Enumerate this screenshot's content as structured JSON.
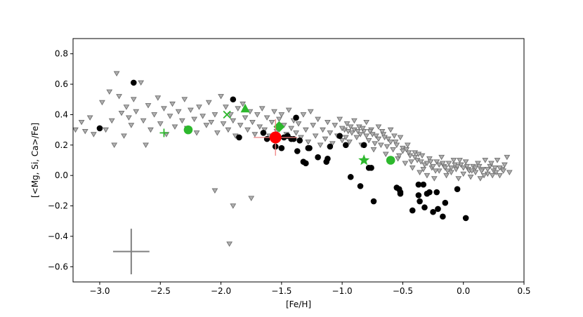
{
  "chart_data": {
    "type": "scatter",
    "title": "",
    "xlabel": "[Fe/H]",
    "ylabel": "[<Mg, Si, Ca>/Fe]",
    "xlim": [
      -3.22,
      0.5
    ],
    "ylim": [
      -0.7,
      0.9
    ],
    "xticks": [
      -3.0,
      -2.5,
      -2.0,
      -1.5,
      -1.0,
      -0.5,
      0.0,
      0.5
    ],
    "xtick_labels": [
      "−3.0",
      "−2.5",
      "−2.0",
      "−1.5",
      "−1.0",
      "−0.5",
      "0.0",
      "0.5"
    ],
    "yticks": [
      -0.6,
      -0.4,
      -0.2,
      0.0,
      0.2,
      0.4,
      0.6,
      0.8
    ],
    "ytick_labels": [
      "−0.6",
      "−0.4",
      "−0.2",
      "0.0",
      "0.2",
      "0.4",
      "0.6",
      "0.8"
    ],
    "grid": false,
    "legend": "none",
    "colors": {
      "background_stars": "#8c8c8c",
      "black_points": "#000000",
      "green_markers": "#2db82d",
      "red_marker": "#ff0000",
      "red_errorbar": "#f08080",
      "error_cross": "#808080"
    },
    "error_bar_example": {
      "x": -2.74,
      "y": -0.5,
      "xerr": 0.15,
      "yerr": 0.15
    },
    "series": [
      {
        "marker": "triangle-down",
        "color": "#8c8c8c",
        "points": [
          [
            -3.2,
            0.3
          ],
          [
            -3.15,
            0.35
          ],
          [
            -3.12,
            0.29
          ],
          [
            -3.08,
            0.38
          ],
          [
            -3.05,
            0.27
          ],
          [
            -2.98,
            0.48
          ],
          [
            -2.95,
            0.3
          ],
          [
            -2.92,
            0.55
          ],
          [
            -2.9,
            0.36
          ],
          [
            -2.88,
            0.2
          ],
          [
            -2.86,
            0.67
          ],
          [
            -2.84,
            0.52
          ],
          [
            -2.82,
            0.41
          ],
          [
            -2.8,
            0.26
          ],
          [
            -2.78,
            0.45
          ],
          [
            -2.76,
            0.38
          ],
          [
            -2.74,
            0.33
          ],
          [
            -2.72,
            0.5
          ],
          [
            -2.7,
            0.42
          ],
          [
            -2.66,
            0.61
          ],
          [
            -2.64,
            0.36
          ],
          [
            -2.62,
            0.2
          ],
          [
            -2.6,
            0.46
          ],
          [
            -2.58,
            0.3
          ],
          [
            -2.55,
            0.4
          ],
          [
            -2.52,
            0.51
          ],
          [
            -2.5,
            0.34
          ],
          [
            -2.47,
            0.44
          ],
          [
            -2.45,
            0.27
          ],
          [
            -2.42,
            0.39
          ],
          [
            -2.4,
            0.47
          ],
          [
            -2.38,
            0.32
          ],
          [
            -2.35,
            0.42
          ],
          [
            -2.32,
            0.36
          ],
          [
            -2.3,
            0.5
          ],
          [
            -2.28,
            0.31
          ],
          [
            -2.25,
            0.43
          ],
          [
            -2.22,
            0.37
          ],
          [
            -2.2,
            0.28
          ],
          [
            -2.18,
            0.45
          ],
          [
            -2.15,
            0.39
          ],
          [
            -2.12,
            0.33
          ],
          [
            -2.1,
            0.48
          ],
          [
            -2.08,
            0.35
          ],
          [
            -2.05,
            0.4
          ],
          [
            -2.03,
            0.28
          ],
          [
            -2.0,
            0.52
          ],
          [
            -1.98,
            0.34
          ],
          [
            -1.96,
            0.45
          ],
          [
            -1.94,
            0.3
          ],
          [
            -1.92,
            0.4
          ],
          [
            -1.9,
            0.36
          ],
          [
            -1.88,
            0.26
          ],
          [
            -1.86,
            0.44
          ],
          [
            -1.84,
            0.33
          ],
          [
            -1.82,
            0.47
          ],
          [
            -1.8,
            0.38
          ],
          [
            -1.78,
            0.3
          ],
          [
            -1.76,
            0.42
          ],
          [
            -1.74,
            0.35
          ],
          [
            -1.72,
            0.27
          ],
          [
            -1.7,
            0.4
          ],
          [
            -1.68,
            0.32
          ],
          [
            -1.66,
            0.44
          ],
          [
            -1.64,
            0.3
          ],
          [
            -1.62,
            0.38
          ],
          [
            -1.6,
            0.26
          ],
          [
            -1.58,
            0.35
          ],
          [
            -1.56,
            0.42
          ],
          [
            -1.54,
            0.29
          ],
          [
            -1.52,
            0.37
          ],
          [
            -1.5,
            0.4
          ],
          [
            -1.48,
            0.33
          ],
          [
            -1.46,
            0.27
          ],
          [
            -1.44,
            0.43
          ],
          [
            -1.42,
            0.31
          ],
          [
            -1.4,
            0.36
          ],
          [
            -1.38,
            0.28
          ],
          [
            -1.36,
            0.34
          ],
          [
            -1.34,
            0.25
          ],
          [
            -1.32,
            0.4
          ],
          [
            -1.3,
            0.3
          ],
          [
            -1.28,
            0.22
          ],
          [
            -1.26,
            0.42
          ],
          [
            -1.24,
            0.33
          ],
          [
            -1.22,
            0.26
          ],
          [
            -1.2,
            0.37
          ],
          [
            -1.18,
            0.2
          ],
          [
            -1.16,
            0.3
          ],
          [
            -1.14,
            0.24
          ],
          [
            -1.12,
            0.35
          ],
          [
            -1.1,
            0.28
          ],
          [
            -1.08,
            0.21
          ],
          [
            -1.06,
            0.33
          ],
          [
            -1.04,
            0.26
          ],
          [
            -1.02,
            0.37
          ],
          [
            -1.0,
            0.23
          ],
          [
            -0.98,
            0.3
          ],
          [
            -0.96,
            0.34
          ],
          [
            -0.94,
            0.22
          ],
          [
            -0.92,
            0.28
          ],
          [
            -0.9,
            0.36
          ],
          [
            -0.88,
            0.25
          ],
          [
            -0.86,
            0.32
          ],
          [
            -0.84,
            0.2
          ],
          [
            -0.82,
            0.29
          ],
          [
            -0.8,
            0.35
          ],
          [
            -0.78,
            0.23
          ],
          [
            -0.76,
            0.3
          ],
          [
            -0.74,
            0.17
          ],
          [
            -0.72,
            0.26
          ],
          [
            -0.7,
            0.32
          ],
          [
            -0.68,
            0.2
          ],
          [
            -0.66,
            0.27
          ],
          [
            -0.64,
            0.14
          ],
          [
            -0.62,
            0.24
          ],
          [
            -0.6,
            0.3
          ],
          [
            -0.58,
            0.17
          ],
          [
            -0.56,
            0.22
          ],
          [
            -0.54,
            0.11
          ],
          [
            -0.52,
            0.25
          ],
          [
            -0.5,
            0.18
          ],
          [
            -0.48,
            0.08
          ],
          [
            -0.46,
            0.2
          ],
          [
            -0.44,
            0.13
          ],
          [
            -0.42,
            0.05
          ],
          [
            -0.4,
            0.15
          ],
          [
            -0.38,
            0.1
          ],
          [
            -0.36,
            0.02
          ],
          [
            -0.34,
            0.13
          ],
          [
            -0.32,
            0.07
          ],
          [
            -0.3,
            0.0
          ],
          [
            -0.28,
            0.11
          ],
          [
            -0.26,
            0.05
          ],
          [
            -0.24,
            -0.02
          ],
          [
            -0.22,
            0.09
          ],
          [
            -0.2,
            0.03
          ],
          [
            -0.18,
            0.12
          ],
          [
            -0.16,
            0.06
          ],
          [
            -0.14,
            0.0
          ],
          [
            -0.12,
            0.08
          ],
          [
            -0.1,
            0.02
          ],
          [
            -0.08,
            0.1
          ],
          [
            -0.06,
            0.04
          ],
          [
            -0.04,
            -0.02
          ],
          [
            -0.02,
            0.07
          ],
          [
            0.0,
            0.01
          ],
          [
            0.02,
            0.09
          ],
          [
            0.04,
            0.04
          ],
          [
            0.06,
            -0.01
          ],
          [
            0.08,
            0.06
          ],
          [
            0.1,
            0.02
          ],
          [
            0.12,
            0.08
          ],
          [
            0.14,
            -0.02
          ],
          [
            0.16,
            0.04
          ],
          [
            0.18,
            0.1
          ],
          [
            0.2,
            0.01
          ],
          [
            0.22,
            0.06
          ],
          [
            0.24,
            0.0
          ],
          [
            0.26,
            0.05
          ],
          [
            0.28,
            0.1
          ],
          [
            0.3,
            0.0
          ],
          [
            0.32,
            0.04
          ],
          [
            0.34,
            0.07
          ],
          [
            0.36,
            0.12
          ],
          [
            0.38,
            0.02
          ],
          [
            -1.0,
            0.31
          ],
          [
            -0.95,
            0.29
          ],
          [
            -0.9,
            0.3
          ],
          [
            -0.85,
            0.27
          ],
          [
            -0.8,
            0.26
          ],
          [
            -0.75,
            0.27
          ],
          [
            -0.7,
            0.24
          ],
          [
            -0.65,
            0.25
          ],
          [
            -0.6,
            0.22
          ],
          [
            -0.55,
            0.2
          ],
          [
            -0.5,
            0.16
          ],
          [
            -0.45,
            0.15
          ],
          [
            -0.4,
            0.12
          ],
          [
            -0.35,
            0.09
          ],
          [
            -0.3,
            0.08
          ],
          [
            -0.25,
            0.06
          ],
          [
            -0.2,
            0.07
          ],
          [
            -0.15,
            0.05
          ],
          [
            -0.1,
            0.05
          ],
          [
            -0.05,
            0.06
          ],
          [
            0.0,
            0.05
          ],
          [
            0.05,
            0.03
          ],
          [
            0.1,
            0.05
          ],
          [
            0.15,
            0.03
          ],
          [
            0.2,
            0.04
          ],
          [
            0.25,
            0.03
          ],
          [
            0.3,
            0.05
          ],
          [
            -0.97,
            0.25
          ],
          [
            -0.93,
            0.32
          ],
          [
            -0.87,
            0.29
          ],
          [
            -0.83,
            0.31
          ],
          [
            -0.77,
            0.29
          ],
          [
            -0.73,
            0.21
          ],
          [
            -0.67,
            0.29
          ],
          [
            -0.63,
            0.19
          ],
          [
            -0.57,
            0.26
          ],
          [
            -0.53,
            0.13
          ],
          [
            -0.47,
            0.17
          ],
          [
            -0.43,
            0.09
          ],
          [
            -0.37,
            0.14
          ],
          [
            -0.33,
            0.04
          ],
          [
            -0.27,
            0.09
          ],
          [
            -0.23,
            0.03
          ],
          [
            -0.17,
            0.08
          ],
          [
            -0.13,
            0.03
          ],
          [
            -0.07,
            0.07
          ],
          [
            -0.03,
            0.1
          ],
          [
            0.03,
            0.06
          ],
          [
            0.07,
            0.03
          ],
          [
            0.13,
            0.06
          ],
          [
            0.17,
            0.0
          ],
          [
            0.23,
            0.08
          ],
          [
            0.27,
            0.02
          ],
          [
            0.33,
            0.03
          ],
          [
            -1.9,
            -0.2
          ],
          [
            -2.05,
            -0.1
          ],
          [
            -1.75,
            -0.15
          ],
          [
            -1.93,
            -0.45
          ]
        ]
      },
      {
        "marker": "circle",
        "color": "#000000",
        "points": [
          [
            -3.0,
            0.31
          ],
          [
            -2.72,
            0.61
          ],
          [
            -1.9,
            0.5
          ],
          [
            -1.85,
            0.25
          ],
          [
            -1.65,
            0.28
          ],
          [
            -1.62,
            0.24
          ],
          [
            -1.55,
            0.19
          ],
          [
            -1.5,
            0.18
          ],
          [
            -1.48,
            0.25
          ],
          [
            -1.45,
            0.26
          ],
          [
            -1.42,
            0.24
          ],
          [
            -1.4,
            0.24
          ],
          [
            -1.38,
            0.38
          ],
          [
            -1.35,
            0.23
          ],
          [
            -1.37,
            0.16
          ],
          [
            -1.32,
            0.09
          ],
          [
            -1.3,
            0.08
          ],
          [
            -1.28,
            0.18
          ],
          [
            -1.27,
            0.18
          ],
          [
            -1.2,
            0.12
          ],
          [
            -1.13,
            0.09
          ],
          [
            -1.12,
            0.11
          ],
          [
            -1.1,
            0.19
          ],
          [
            -1.02,
            0.26
          ],
          [
            -0.97,
            0.2
          ],
          [
            -0.93,
            -0.01
          ],
          [
            -0.85,
            -0.07
          ],
          [
            -0.82,
            0.2
          ],
          [
            -0.78,
            0.05
          ],
          [
            -0.76,
            0.05
          ],
          [
            -0.74,
            -0.17
          ],
          [
            -0.55,
            -0.08
          ],
          [
            -0.53,
            -0.09
          ],
          [
            -0.52,
            -0.11
          ],
          [
            -0.52,
            -0.12
          ],
          [
            -0.42,
            -0.23
          ],
          [
            -0.37,
            -0.06
          ],
          [
            -0.37,
            -0.13
          ],
          [
            -0.36,
            -0.17
          ],
          [
            -0.33,
            -0.06
          ],
          [
            -0.32,
            -0.21
          ],
          [
            -0.3,
            -0.12
          ],
          [
            -0.28,
            -0.11
          ],
          [
            -0.25,
            -0.24
          ],
          [
            -0.22,
            -0.11
          ],
          [
            -0.21,
            -0.22
          ],
          [
            -0.17,
            -0.27
          ],
          [
            -0.15,
            -0.18
          ],
          [
            -0.05,
            -0.09
          ],
          [
            0.02,
            -0.28
          ]
        ]
      },
      {
        "marker": "circle-large",
        "color": "#2db82d",
        "points": [
          [
            -2.27,
            0.3
          ],
          [
            -0.6,
            0.1
          ]
        ]
      },
      {
        "marker": "plus",
        "color": "#2db82d",
        "points": [
          [
            -2.47,
            0.28
          ]
        ]
      },
      {
        "marker": "x",
        "color": "#2db82d",
        "points": [
          [
            -1.95,
            0.4
          ]
        ]
      },
      {
        "marker": "triangle-up",
        "color": "#2db82d",
        "points": [
          [
            -1.8,
            0.44
          ]
        ]
      },
      {
        "marker": "diamond",
        "color": "#2db82d",
        "points": [
          [
            -1.52,
            0.32
          ]
        ]
      },
      {
        "marker": "star",
        "color": "#2db82d",
        "points": [
          [
            -0.82,
            0.1
          ]
        ]
      },
      {
        "marker": "circle-xl",
        "color": "#ff0000",
        "points": [
          [
            -1.55,
            0.25
          ]
        ],
        "xerr": 0.18,
        "yerr": 0.12
      }
    ]
  }
}
